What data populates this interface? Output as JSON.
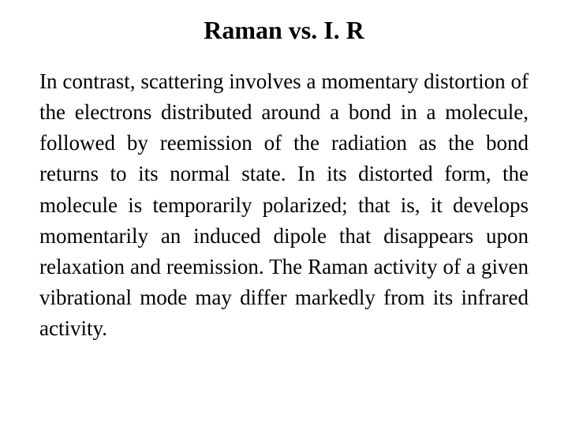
{
  "slide": {
    "title": "Raman vs. I. R",
    "body": "In contrast, scattering involves a momentary distortion of the electrons distributed around a bond in a molecule, followed by reemission of the radiation as the bond returns to its normal state. In its distorted form, the molecule is temporarily polarized; that is, it develops momentarily an induced dipole that disappears upon relaxation and reemission. The Raman activity of a given vibrational mode may differ markedly from its infrared activity.",
    "title_fontsize": 32,
    "body_fontsize": 27,
    "font_family": "Times New Roman",
    "text_color": "#000000",
    "background_color": "#ffffff",
    "body_align": "justify"
  }
}
